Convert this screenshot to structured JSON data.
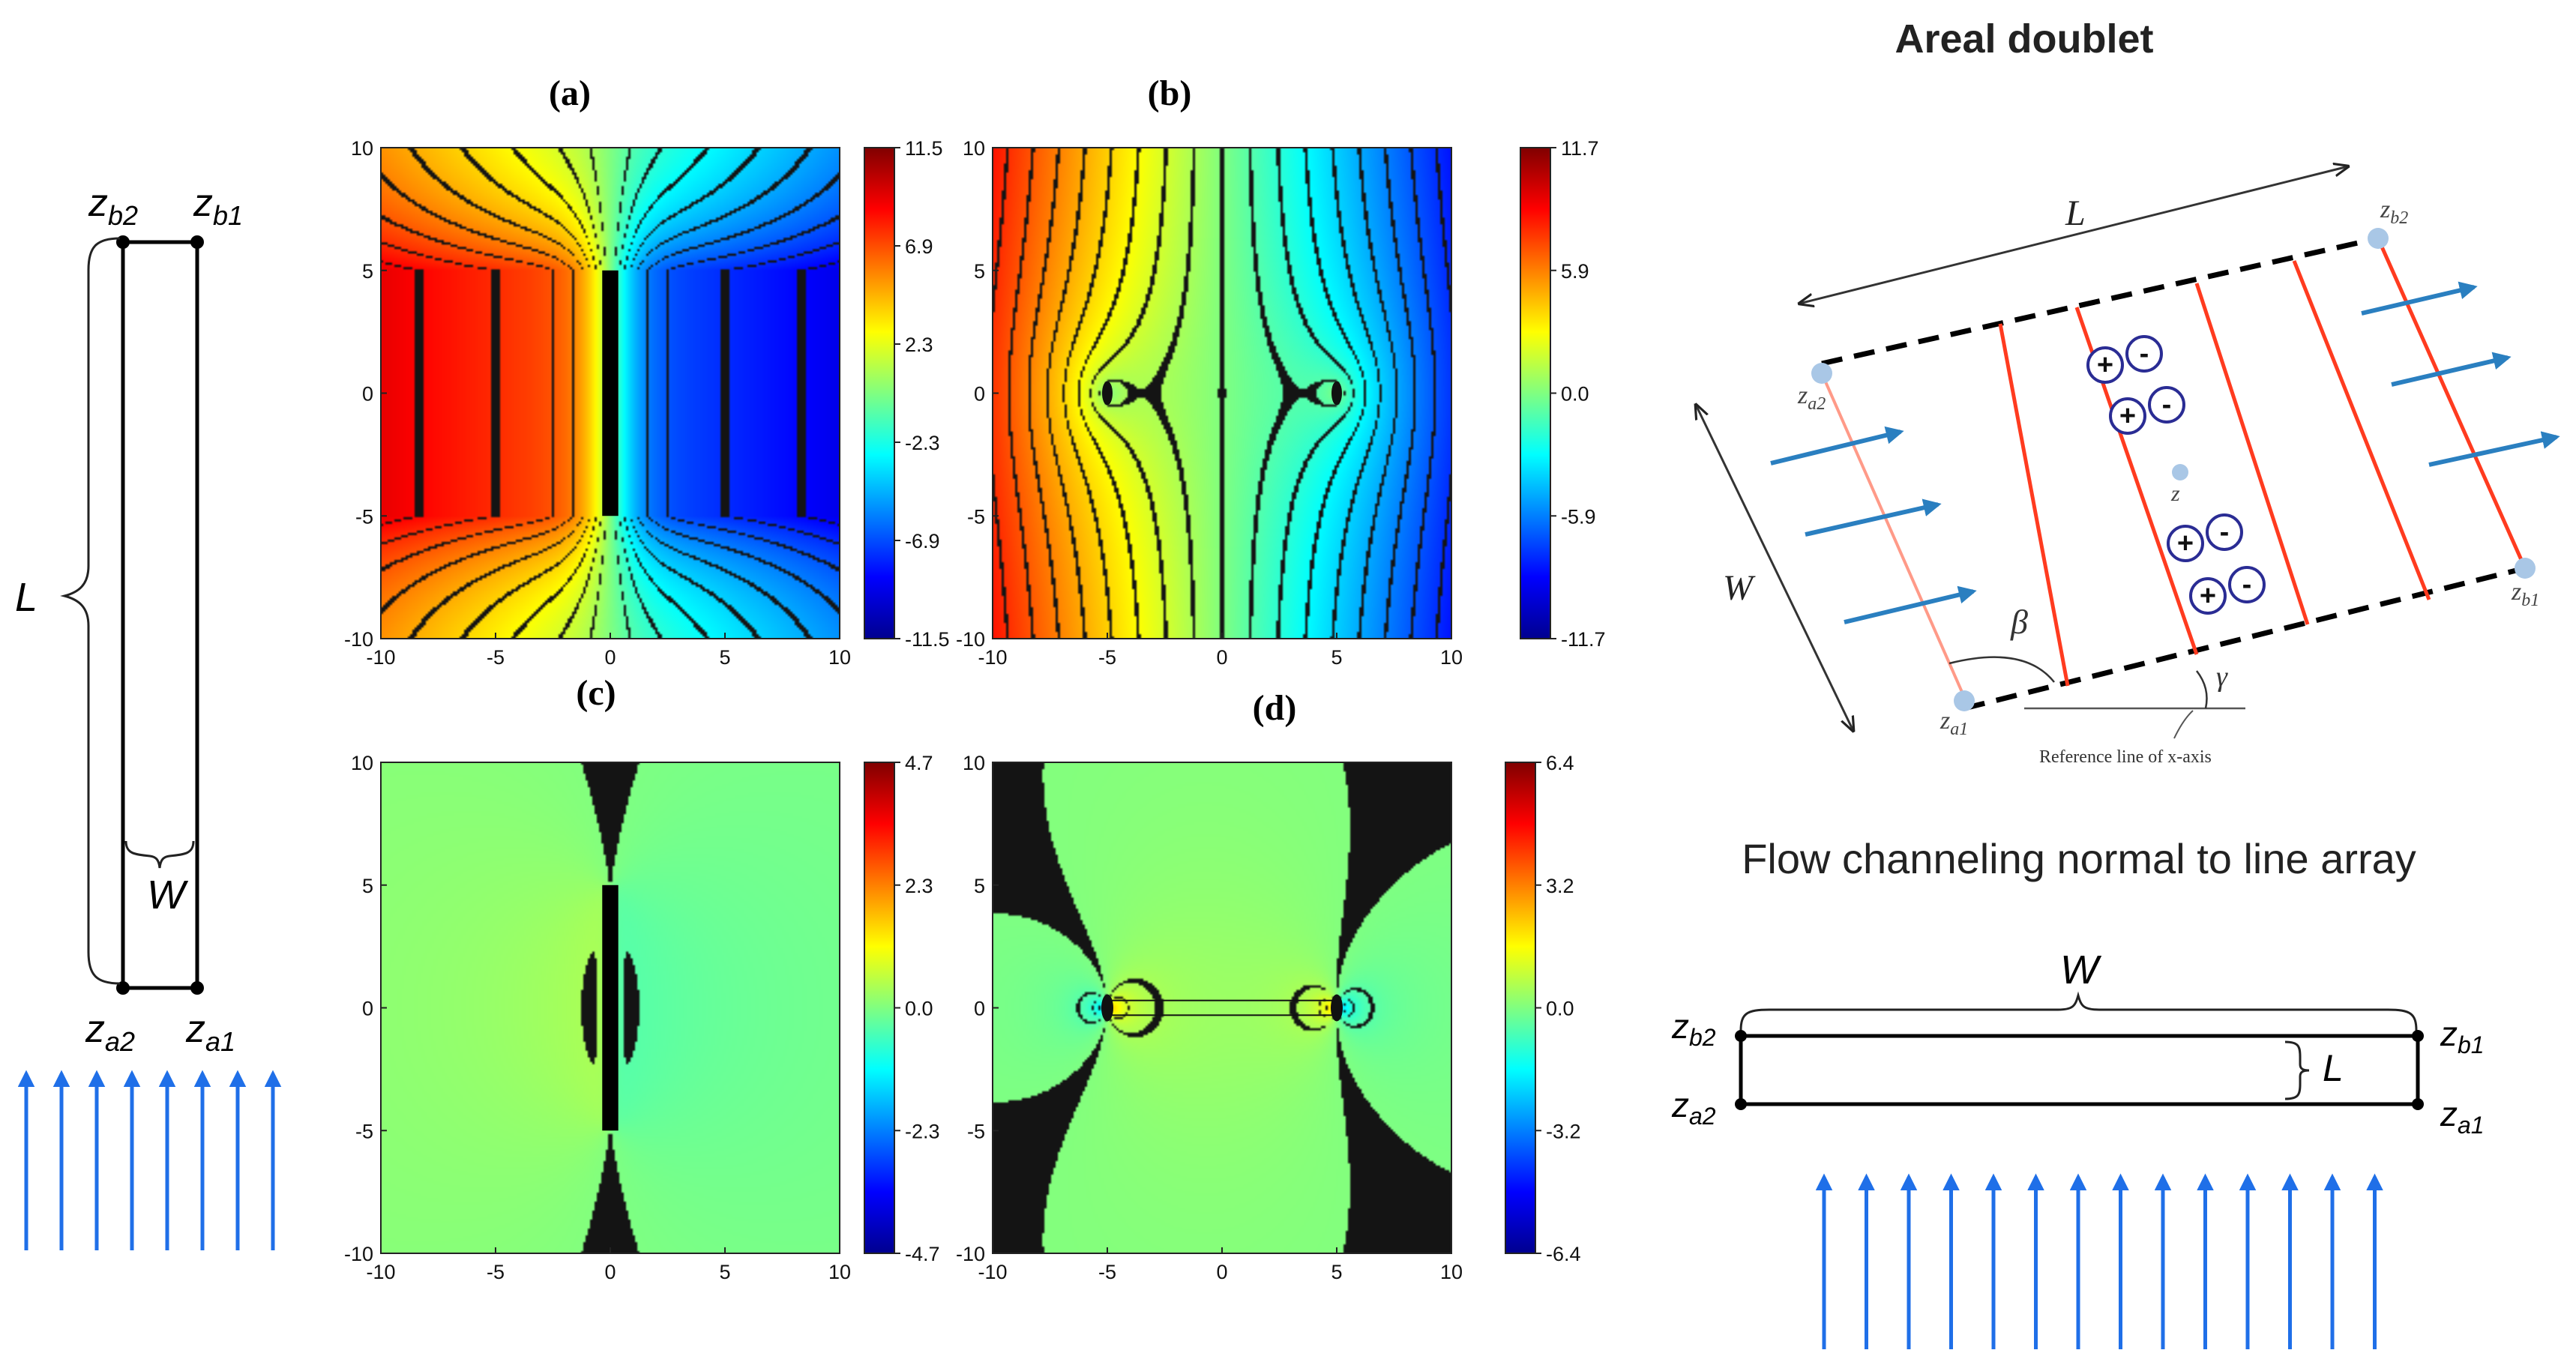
{
  "left_rectangle": {
    "z_b2": {
      "base": "z",
      "sub": "b2"
    },
    "z_b1": {
      "base": "z",
      "sub": "b1"
    },
    "z_a2": {
      "base": "z",
      "sub": "a2"
    },
    "z_a1": {
      "base": "z",
      "sub": "a1"
    },
    "length_label": "L",
    "width_label": "W",
    "flow_arrow_count": 8
  },
  "panels": [
    {
      "label": "(a)",
      "cbar_ticks": [
        "11.5",
        "6.9",
        "2.3",
        "-2.3",
        "-6.9",
        "-11.5"
      ],
      "field": "line_element_across"
    },
    {
      "label": "(b)",
      "cbar_ticks": [
        "11.7",
        "5.9",
        "0.0",
        "-5.9",
        "-11.7"
      ],
      "field": "point_pair"
    },
    {
      "label": "(c)",
      "cbar_ticks": [
        "4.7",
        "2.3",
        "0.0",
        "-2.3",
        "-4.7"
      ],
      "field": "vertical_dipole_line"
    },
    {
      "label": "(d)",
      "cbar_ticks": [
        "6.4",
        "3.2",
        "0.0",
        "-3.2",
        "-6.4"
      ],
      "field": "horizontal_dipole_pair"
    }
  ],
  "axis_ticks": {
    "x": [
      "-10",
      "-5",
      "0",
      "5",
      "10"
    ],
    "y": [
      "10",
      "5",
      "0",
      "-5",
      "-10"
    ]
  },
  "areal_doublet": {
    "title": "Areal doublet",
    "length_label": "L",
    "width_label": "W",
    "beta_label": "β",
    "gamma_label": "γ",
    "reference_text": "Reference line of x-axis",
    "z_b2": {
      "base": "z",
      "sub": "b2"
    },
    "z_a2": {
      "base": "z",
      "sub": "a2"
    },
    "z_a1": {
      "base": "z",
      "sub": "a1"
    },
    "z_b1": {
      "base": "z",
      "sub": "b1"
    },
    "z_mid": "z",
    "plus_sign": "+",
    "minus_sign": "-"
  },
  "flow_channeling": {
    "title": "Flow channeling normal to line array",
    "width_label": "W",
    "length_label": "L",
    "z_b2": {
      "base": "z",
      "sub": "b2"
    },
    "z_b1": {
      "base": "z",
      "sub": "b1"
    },
    "z_a2": {
      "base": "z",
      "sub": "a2"
    },
    "z_a1": {
      "base": "z",
      "sub": "a1"
    },
    "flow_arrow_count": 14
  },
  "colors": {
    "flow_arrow": "#1f6fe8",
    "doublet_arrow": "#2a7fc0",
    "doublet_line": "#ff3b1f",
    "charge_ring": "#2a2c94",
    "node": "#a9c7e6"
  }
}
